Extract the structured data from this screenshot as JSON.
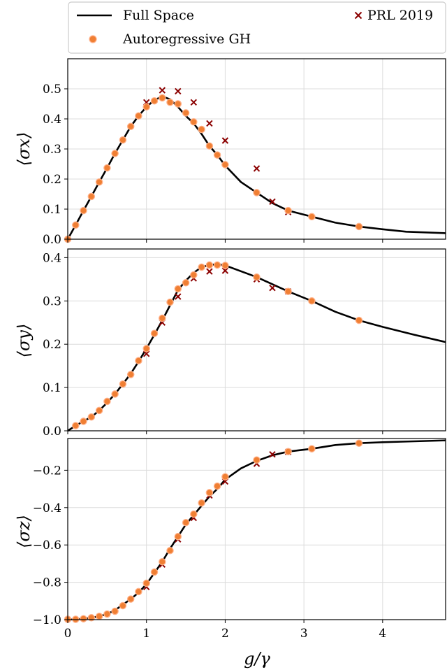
{
  "legend": {
    "items": [
      {
        "label": "Full Space",
        "kind": "line",
        "color": "#000000"
      },
      {
        "label": "PRL 2019",
        "kind": "cross",
        "color": "#8b0000"
      },
      {
        "label": "Autoregressive GH",
        "kind": "dot",
        "color": "#f07f33"
      }
    ]
  },
  "colors": {
    "full_space": "#000000",
    "prl": "#8b0000",
    "ar_fill": "#f07f33",
    "ar_edge": "#ffb088",
    "grid": "#dcdcdc"
  },
  "chart_data": [
    {
      "type": "line",
      "name": "sigma_x",
      "ylabel": "⟨σx⟩",
      "xlim": [
        0,
        4.8
      ],
      "ylim": [
        0,
        0.6
      ],
      "yticks": [
        "0.0",
        "0.1",
        "0.2",
        "0.3",
        "0.4",
        "0.5"
      ],
      "yticks_values": [
        0,
        0.1,
        0.2,
        0.3,
        0.4,
        0.5
      ],
      "series": [
        {
          "name": "Full Space",
          "x": [
            0,
            0.1,
            0.2,
            0.3,
            0.4,
            0.5,
            0.6,
            0.7,
            0.8,
            0.9,
            1.0,
            1.1,
            1.2,
            1.3,
            1.4,
            1.5,
            1.6,
            1.7,
            1.8,
            1.9,
            2.0,
            2.2,
            2.4,
            2.6,
            2.8,
            3.1,
            3.4,
            3.7,
            4.0,
            4.3,
            4.8
          ],
          "y": [
            0,
            0.047,
            0.095,
            0.142,
            0.19,
            0.237,
            0.285,
            0.33,
            0.375,
            0.41,
            0.44,
            0.462,
            0.475,
            0.465,
            0.44,
            0.41,
            0.385,
            0.35,
            0.31,
            0.28,
            0.245,
            0.19,
            0.155,
            0.12,
            0.095,
            0.075,
            0.055,
            0.042,
            0.033,
            0.025,
            0.02
          ]
        },
        {
          "name": "Autoregressive GH",
          "x": [
            0,
            0.1,
            0.2,
            0.3,
            0.4,
            0.5,
            0.6,
            0.7,
            0.8,
            0.9,
            1.0,
            1.1,
            1.2,
            1.3,
            1.4,
            1.5,
            1.6,
            1.7,
            1.8,
            1.9,
            2.0,
            2.4,
            2.8,
            3.1,
            3.7
          ],
          "y": [
            0,
            0.047,
            0.095,
            0.142,
            0.19,
            0.237,
            0.285,
            0.33,
            0.375,
            0.41,
            0.44,
            0.46,
            0.47,
            0.455,
            0.45,
            0.42,
            0.39,
            0.365,
            0.31,
            0.28,
            0.248,
            0.155,
            0.095,
            0.075,
            0.042
          ]
        },
        {
          "name": "PRL 2019",
          "x": [
            1.0,
            1.2,
            1.4,
            1.6,
            1.8,
            2.0,
            2.4,
            2.6,
            2.8
          ],
          "y": [
            0.455,
            0.495,
            0.492,
            0.455,
            0.385,
            0.328,
            0.235,
            0.125,
            0.09
          ]
        }
      ]
    },
    {
      "type": "line",
      "name": "sigma_y",
      "ylabel": "⟨σy⟩",
      "xlim": [
        0,
        4.8
      ],
      "ylim": [
        0,
        0.42
      ],
      "yticks": [
        "0.0",
        "0.1",
        "0.2",
        "0.3",
        "0.4"
      ],
      "yticks_values": [
        0,
        0.1,
        0.2,
        0.3,
        0.4
      ],
      "series": [
        {
          "name": "Full Space",
          "x": [
            0,
            0.1,
            0.2,
            0.3,
            0.4,
            0.5,
            0.6,
            0.7,
            0.8,
            0.9,
            1.0,
            1.1,
            1.2,
            1.3,
            1.4,
            1.5,
            1.6,
            1.7,
            1.8,
            1.9,
            2.0,
            2.4,
            2.8,
            3.1,
            3.4,
            3.7,
            4.0,
            4.4,
            4.8
          ],
          "y": [
            0,
            0.012,
            0.022,
            0.032,
            0.047,
            0.065,
            0.085,
            0.108,
            0.132,
            0.16,
            0.19,
            0.222,
            0.255,
            0.29,
            0.325,
            0.347,
            0.365,
            0.378,
            0.383,
            0.385,
            0.382,
            0.355,
            0.322,
            0.3,
            0.275,
            0.255,
            0.24,
            0.222,
            0.205
          ]
        },
        {
          "name": "Autoregressive GH",
          "x": [
            0.1,
            0.2,
            0.3,
            0.4,
            0.5,
            0.6,
            0.7,
            0.8,
            0.9,
            1.0,
            1.1,
            1.2,
            1.3,
            1.4,
            1.5,
            1.6,
            1.7,
            1.8,
            1.9,
            2.0,
            2.4,
            2.8,
            3.1,
            3.7
          ],
          "y": [
            0.012,
            0.022,
            0.032,
            0.047,
            0.068,
            0.085,
            0.108,
            0.13,
            0.162,
            0.19,
            0.225,
            0.26,
            0.297,
            0.328,
            0.342,
            0.36,
            0.378,
            0.383,
            0.383,
            0.382,
            0.355,
            0.322,
            0.3,
            0.255
          ]
        },
        {
          "name": "PRL 2019",
          "x": [
            1.0,
            1.2,
            1.4,
            1.6,
            1.8,
            2.0,
            2.4,
            2.6,
            2.8
          ],
          "y": [
            0.178,
            0.25,
            0.31,
            0.352,
            0.368,
            0.37,
            0.35,
            0.33,
            0.322
          ]
        }
      ]
    },
    {
      "type": "line",
      "name": "sigma_z",
      "ylabel": "⟨σz⟩",
      "xlabel": "g/γ",
      "xlim": [
        0,
        4.8
      ],
      "ylim": [
        -1.0,
        -0.03
      ],
      "xticks": [
        "0",
        "1",
        "2",
        "3",
        "4"
      ],
      "xticks_values": [
        0,
        1,
        2,
        3,
        4
      ],
      "yticks": [
        "−1.0",
        "−0.8",
        "−0.6",
        "−0.4",
        "−0.2"
      ],
      "yticks_values": [
        -1.0,
        -0.8,
        -0.6,
        -0.4,
        -0.2
      ],
      "series": [
        {
          "name": "Full Space",
          "x": [
            0,
            0.1,
            0.2,
            0.3,
            0.4,
            0.5,
            0.6,
            0.7,
            0.8,
            0.9,
            1.0,
            1.1,
            1.2,
            1.3,
            1.4,
            1.5,
            1.6,
            1.7,
            1.8,
            1.9,
            2.0,
            2.2,
            2.4,
            2.6,
            2.8,
            3.1,
            3.4,
            3.7,
            4.0,
            4.4,
            4.8
          ],
          "y": [
            -1.0,
            -0.998,
            -0.995,
            -0.99,
            -0.982,
            -0.97,
            -0.95,
            -0.92,
            -0.89,
            -0.855,
            -0.81,
            -0.75,
            -0.69,
            -0.62,
            -0.555,
            -0.49,
            -0.44,
            -0.39,
            -0.34,
            -0.3,
            -0.25,
            -0.19,
            -0.15,
            -0.12,
            -0.1,
            -0.085,
            -0.065,
            -0.055,
            -0.05,
            -0.045,
            -0.04
          ]
        },
        {
          "name": "Autoregressive GH",
          "x": [
            0,
            0.1,
            0.2,
            0.3,
            0.4,
            0.5,
            0.6,
            0.7,
            0.8,
            0.9,
            1.0,
            1.1,
            1.2,
            1.3,
            1.4,
            1.5,
            1.6,
            1.7,
            1.8,
            1.9,
            2.0,
            2.4,
            2.8,
            3.1,
            3.7
          ],
          "y": [
            -0.998,
            -0.998,
            -0.995,
            -0.99,
            -0.982,
            -0.97,
            -0.955,
            -0.925,
            -0.89,
            -0.85,
            -0.805,
            -0.745,
            -0.69,
            -0.63,
            -0.555,
            -0.48,
            -0.435,
            -0.375,
            -0.32,
            -0.285,
            -0.235,
            -0.145,
            -0.1,
            -0.085,
            -0.055
          ]
        },
        {
          "name": "PRL 2019",
          "x": [
            1.0,
            1.2,
            1.4,
            1.6,
            1.8,
            2.0,
            2.4,
            2.6,
            2.8
          ],
          "y": [
            -0.825,
            -0.705,
            -0.57,
            -0.455,
            -0.335,
            -0.26,
            -0.165,
            -0.115,
            -0.102
          ]
        }
      ]
    }
  ]
}
